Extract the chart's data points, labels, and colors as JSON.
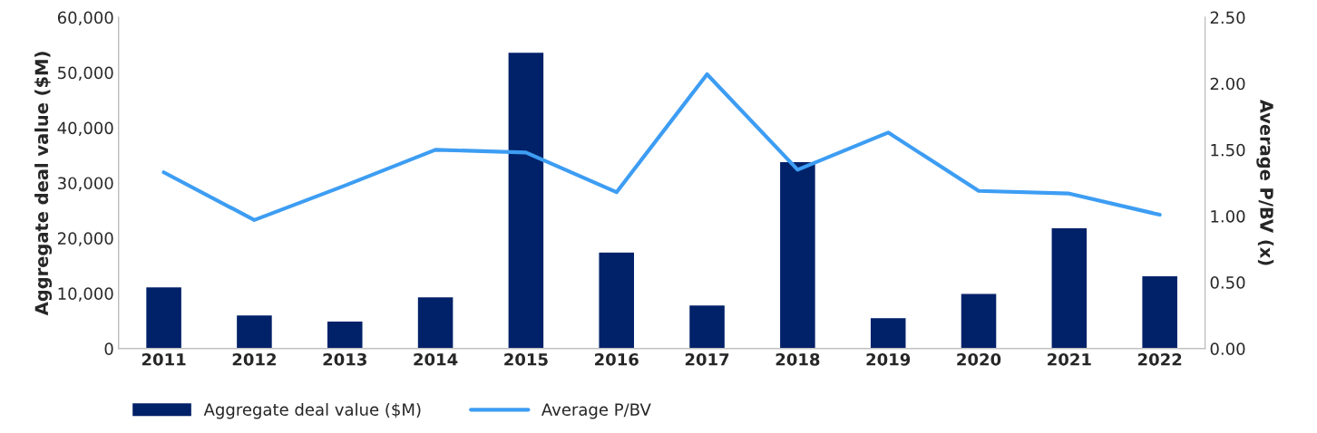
{
  "chart_data": {
    "type": "bar",
    "categories": [
      "2011",
      "2012",
      "2013",
      "2014",
      "2015",
      "2016",
      "2017",
      "2018",
      "2019",
      "2020",
      "2021",
      "2022"
    ],
    "ylabel": "Aggregate deal value ($M)",
    "y2label": "Average P/BV (x)",
    "series": [
      {
        "name": "Aggregate deal value ($M)",
        "color": "#012169",
        "values": [
          11200,
          6100,
          5000,
          9400,
          53700,
          17500,
          7900,
          33900,
          5600,
          10000,
          21900,
          13200
        ]
      },
      {
        "name": "Average P/BV",
        "type": "line",
        "axis": "y2",
        "color": "#3d9df3",
        "values": [
          1.33,
          0.97,
          1.23,
          1.5,
          1.48,
          1.18,
          2.07,
          1.35,
          1.63,
          1.19,
          1.17,
          1.01
        ]
      }
    ],
    "ylim": [
      0,
      60000
    ],
    "yticks": [
      {
        "value": 0,
        "label": "0"
      },
      {
        "value": 10000,
        "label": "10,000"
      },
      {
        "value": 20000,
        "label": "20,000"
      },
      {
        "value": 30000,
        "label": "30,000"
      },
      {
        "value": 40000,
        "label": "40,000"
      },
      {
        "value": 50000,
        "label": "50,000"
      },
      {
        "value": 60000,
        "label": "60,000"
      }
    ],
    "y2lim": [
      0,
      2.5
    ],
    "y2ticks": [
      {
        "value": 0,
        "label": "0.00"
      },
      {
        "value": 0.5,
        "label": "0.50"
      },
      {
        "value": 1.0,
        "label": "1.00"
      },
      {
        "value": 1.5,
        "label": "1.50"
      },
      {
        "value": 2.0,
        "label": "2.00"
      },
      {
        "value": 2.5,
        "label": "2.50"
      }
    ],
    "grid": false,
    "legend": "bottom"
  }
}
